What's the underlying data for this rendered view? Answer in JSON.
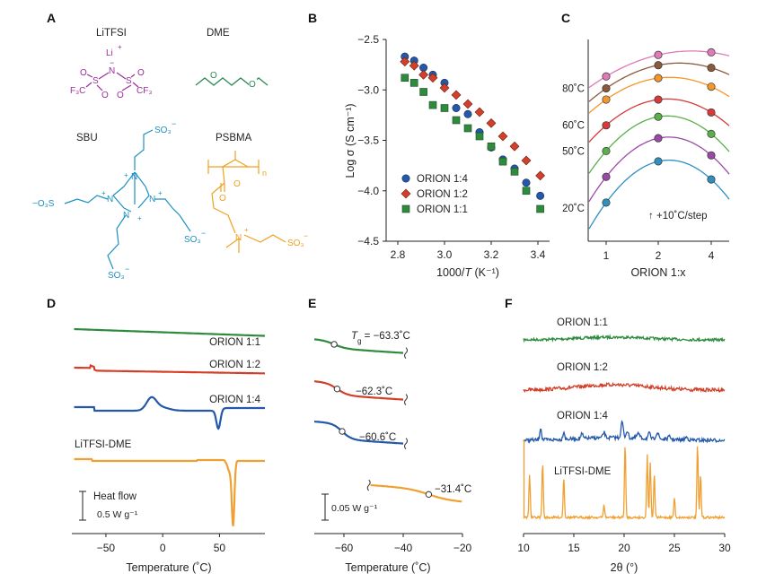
{
  "panels": {
    "A": {
      "label": "A",
      "compounds": {
        "litfsi": {
          "name": "LiTFSI",
          "color": "#9b2d9b",
          "li": "Li",
          "plus": "+",
          "n": "N",
          "minus": "−",
          "s": "S",
          "o": "O",
          "cf3_left": "F₃C",
          "cf3_right": "CF₃"
        },
        "dme": {
          "name": "DME",
          "color": "#2a8a55",
          "o": "O"
        },
        "sbu": {
          "name": "SBU",
          "color": "#1e90c0",
          "so3": "SO₃",
          "minus": "−",
          "o3s": "−O₃S",
          "n": "N",
          "plus": "+"
        },
        "psbma": {
          "name": "PSBMA",
          "color": "#f0a020",
          "n_sub": "n",
          "o": "O",
          "n": "N",
          "plus": "+",
          "so3": "SO₃",
          "minus": "−"
        }
      }
    },
    "B": {
      "label": "B"
    },
    "C": {
      "label": "C"
    },
    "D": {
      "label": "D"
    },
    "E": {
      "label": "E"
    },
    "F": {
      "label": "F"
    }
  },
  "colors": {
    "orion_1_1": "#2e8b3e",
    "orion_1_2": "#d2402a",
    "orion_1_4": "#2458a8",
    "litfsi_dme": "#f0a030",
    "c_series": [
      "#2f8fbf",
      "#9a4aa6",
      "#59b04a",
      "#d63a3a",
      "#f5962a",
      "#8b5a3c",
      "#e07ab8"
    ]
  },
  "chart_data": [
    {
      "id": "B",
      "type": "scatter",
      "title": "",
      "xlabel_prefix": "1000/",
      "xlabel_var": "T",
      "xlabel_suffix": " (K⁻¹)",
      "ylabel": "Log σ (S cm⁻¹)",
      "xlim": [
        2.75,
        3.45
      ],
      "ylim": [
        -4.5,
        -2.5
      ],
      "xticks": [
        "2.8",
        "3.0",
        "3.2",
        "3.4"
      ],
      "xtick_values": [
        2.8,
        3.0,
        3.2,
        3.4
      ],
      "yticks": [
        "−2.5",
        "−3.0",
        "−3.5",
        "−4.0",
        "−4.5"
      ],
      "ytick_values": [
        -2.5,
        -3.0,
        -3.5,
        -4.0,
        -4.5
      ],
      "legend": [
        "ORION 1:4",
        "ORION 1:2",
        "ORION 1:1"
      ],
      "series": [
        {
          "name": "ORION 1:4",
          "marker": "circle",
          "color": "#2458a8",
          "x": [
            2.83,
            2.87,
            2.91,
            2.95,
            3.0,
            3.05,
            3.1,
            3.15,
            3.2,
            3.25,
            3.3,
            3.35,
            3.41
          ],
          "y": [
            -2.67,
            -2.71,
            -2.78,
            -2.85,
            -2.93,
            -3.18,
            -3.24,
            -3.42,
            -3.57,
            -3.69,
            -3.78,
            -3.92,
            -4.05
          ]
        },
        {
          "name": "ORION 1:2",
          "marker": "diamond",
          "color": "#d2402a",
          "x": [
            2.83,
            2.87,
            2.91,
            2.95,
            3.0,
            3.05,
            3.1,
            3.15,
            3.2,
            3.25,
            3.3,
            3.35,
            3.41
          ],
          "y": [
            -2.72,
            -2.76,
            -2.85,
            -2.88,
            -2.98,
            -3.05,
            -3.14,
            -3.22,
            -3.33,
            -3.46,
            -3.56,
            -3.7,
            -3.85
          ]
        },
        {
          "name": "ORION 1:1",
          "marker": "square",
          "color": "#2e8b3e",
          "x": [
            2.83,
            2.87,
            2.91,
            2.95,
            3.0,
            3.05,
            3.1,
            3.15,
            3.2,
            3.25,
            3.3,
            3.35,
            3.41
          ],
          "y": [
            -2.88,
            -2.93,
            -3.02,
            -3.15,
            -3.18,
            -3.3,
            -3.38,
            -3.46,
            -3.56,
            -3.71,
            -3.81,
            -4.0,
            -4.18
          ]
        }
      ]
    },
    {
      "id": "C",
      "type": "scatter",
      "xlabel": "ORION 1:x",
      "xticks": [
        "1",
        "2",
        "4"
      ],
      "temp_labels": [
        "80˚C",
        "60˚C",
        "50˚C",
        "20˚C"
      ],
      "temp_label_curve_index": [
        5,
        3,
        2,
        0
      ],
      "step_arrow": "↑",
      "step_note": "+10˚C/step",
      "series_y": [
        [
          -4.05,
          -3.57,
          -3.78
        ],
        [
          -3.75,
          -3.3,
          -3.5
        ],
        [
          -3.45,
          -3.05,
          -3.25
        ],
        [
          -3.15,
          -2.85,
          -3.0
        ],
        [
          -2.85,
          -2.6,
          -2.7
        ],
        [
          -2.72,
          -2.45,
          -2.48
        ],
        [
          -2.58,
          -2.33,
          -2.3
        ]
      ]
    },
    {
      "id": "D",
      "type": "line",
      "xlabel": "Temperature (˚C)",
      "xlim": [
        -80,
        90
      ],
      "xticks": [
        "−50",
        "0",
        "50"
      ],
      "xtick_values": [
        -50,
        0,
        50
      ],
      "series_labels": [
        "ORION 1:1",
        "ORION 1:2",
        "ORION 1:4",
        "LiTFSI-DME"
      ],
      "scale_bar_title": "Heat flow",
      "scale_bar_value": "0.5 W g⁻¹"
    },
    {
      "id": "E",
      "type": "line",
      "xlabel": "Temperature (˚C)",
      "xlim": [
        -70,
        -20
      ],
      "xticks": [
        "−60",
        "−40",
        "−20"
      ],
      "xtick_values": [
        -60,
        -40,
        -20
      ],
      "tg_symbol": "T",
      "tg_sub": "g",
      "tg_values": [
        " = −63.3˚C",
        "−62.3˚C",
        "−60.6˚C",
        "−31.4˚C"
      ],
      "tg_numeric": [
        -63.3,
        -62.3,
        -60.6,
        -31.4
      ],
      "scale_bar_value": "0.05 W g⁻¹"
    },
    {
      "id": "F",
      "type": "line",
      "xlabel": "2θ (°)",
      "xlim": [
        10,
        30
      ],
      "xticks": [
        "10",
        "15",
        "20",
        "25",
        "30"
      ],
      "xtick_values": [
        10,
        15,
        20,
        25,
        30
      ],
      "series_labels": [
        "ORION 1:1",
        "ORION 1:2",
        "ORION 1:4",
        "LiTFSI-DME"
      ],
      "litfsi_dme_peaks": [
        10.6,
        11.9,
        14.0,
        18.0,
        20.1,
        22.3,
        22.6,
        23.0,
        25.0,
        27.3,
        27.6
      ]
    }
  ]
}
